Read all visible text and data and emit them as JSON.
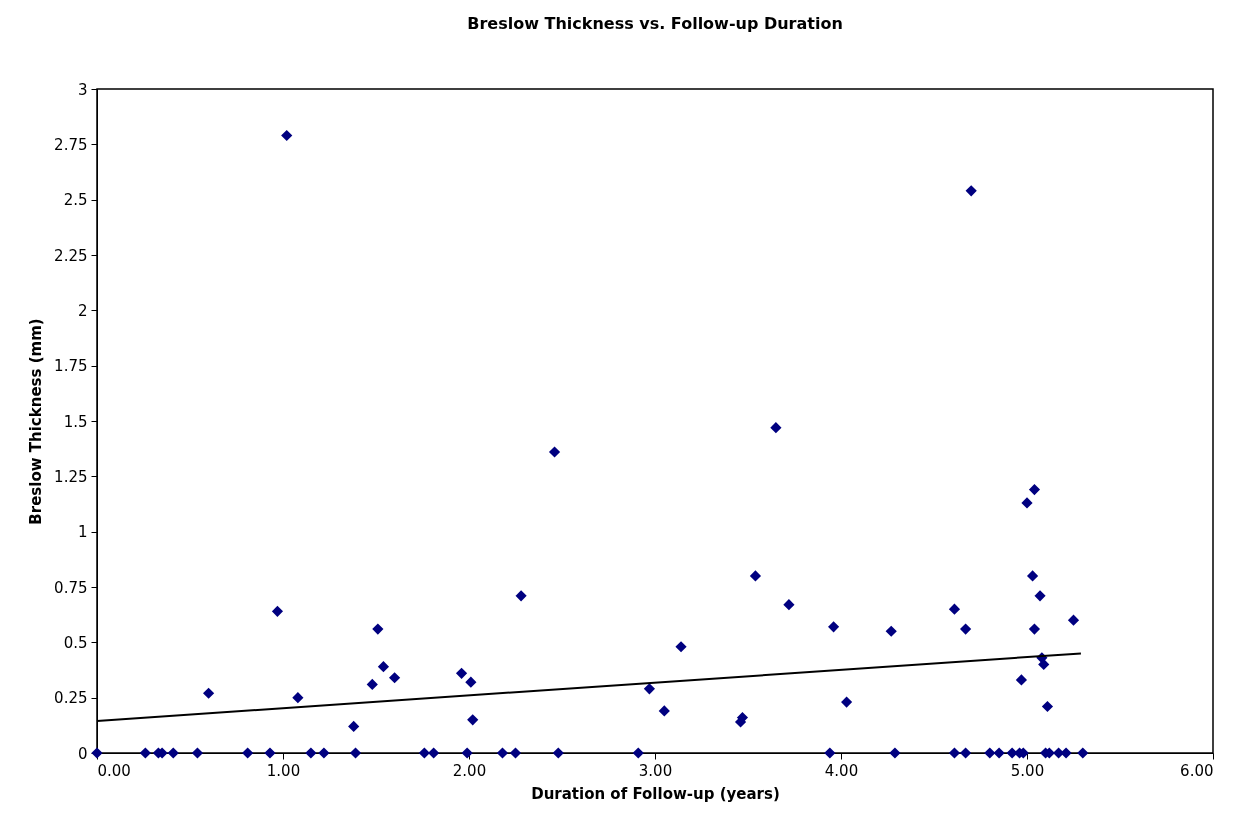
{
  "chart_data": {
    "type": "scatter",
    "title": "Breslow Thickness vs. Follow-up Duration",
    "xlabel": "Duration of Follow-up (years)",
    "ylabel": "Breslow Thickness (mm)",
    "xlim": [
      0,
      6
    ],
    "xticks": [
      {
        "value": 0,
        "label": "0.00"
      },
      {
        "value": 1,
        "label": "1.00"
      },
      {
        "value": 2,
        "label": "2.00"
      },
      {
        "value": 3,
        "label": "3.00"
      },
      {
        "value": 4,
        "label": "4.00"
      },
      {
        "value": 5,
        "label": "5.00"
      },
      {
        "value": 6,
        "label": "6.00"
      }
    ],
    "ylim": [
      0,
      3
    ],
    "yticks": [
      0,
      0.25,
      0.5,
      0.75,
      1,
      1.25,
      1.5,
      1.75,
      2,
      2.25,
      2.5,
      2.75,
      3
    ],
    "grid": false,
    "series": [
      {
        "color": "#000080",
        "marker": "diamond",
        "x": [
          0,
          0.26,
          0.33,
          0.35,
          0.41,
          0.54,
          0.81,
          0.93,
          1.15,
          1.22,
          1.39,
          1.76,
          1.81,
          1.99,
          2.18,
          2.25,
          2.48,
          2.91,
          3.94,
          4.29,
          4.61,
          4.67,
          4.8,
          4.85,
          4.92,
          4.96,
          4.98,
          5.1,
          5.12,
          5.17,
          5.21,
          5.3,
          0.6,
          0.97,
          1.02,
          1.08,
          1.38,
          1.48,
          1.51,
          1.54,
          1.6,
          1.96,
          2.01,
          2.02,
          2.28,
          2.46,
          2.97,
          3.05,
          3.14,
          3.46,
          3.47,
          3.54,
          3.65,
          3.72,
          3.96,
          4.03,
          4.27,
          4.61,
          4.67,
          4.7,
          4.97,
          5.0,
          5.03,
          5.04,
          5.04,
          5.07,
          5.08,
          5.09,
          5.11,
          5.25
        ],
        "values": [
          0,
          0,
          0,
          0,
          0,
          0,
          0,
          0,
          0,
          0,
          0,
          0,
          0,
          0,
          0,
          0,
          0,
          0,
          0,
          0,
          0,
          0,
          0,
          0,
          0,
          0,
          0,
          0,
          0,
          0,
          0,
          0,
          0.27,
          0.64,
          2.79,
          0.25,
          0.12,
          0.31,
          0.56,
          0.39,
          0.34,
          0.36,
          0.32,
          0.15,
          0.71,
          1.36,
          0.29,
          0.19,
          0.48,
          0.14,
          0.16,
          0.8,
          1.47,
          0.67,
          0.57,
          0.23,
          0.55,
          0.65,
          0.56,
          2.54,
          0.33,
          1.13,
          0.8,
          1.19,
          0.56,
          0.71,
          0.43,
          0.4,
          0.21,
          0.6
        ]
      },
      {
        "type": "line",
        "color": "#000000",
        "x": [
          0,
          5.29
        ],
        "values": [
          0.145,
          0.45
        ]
      }
    ]
  }
}
